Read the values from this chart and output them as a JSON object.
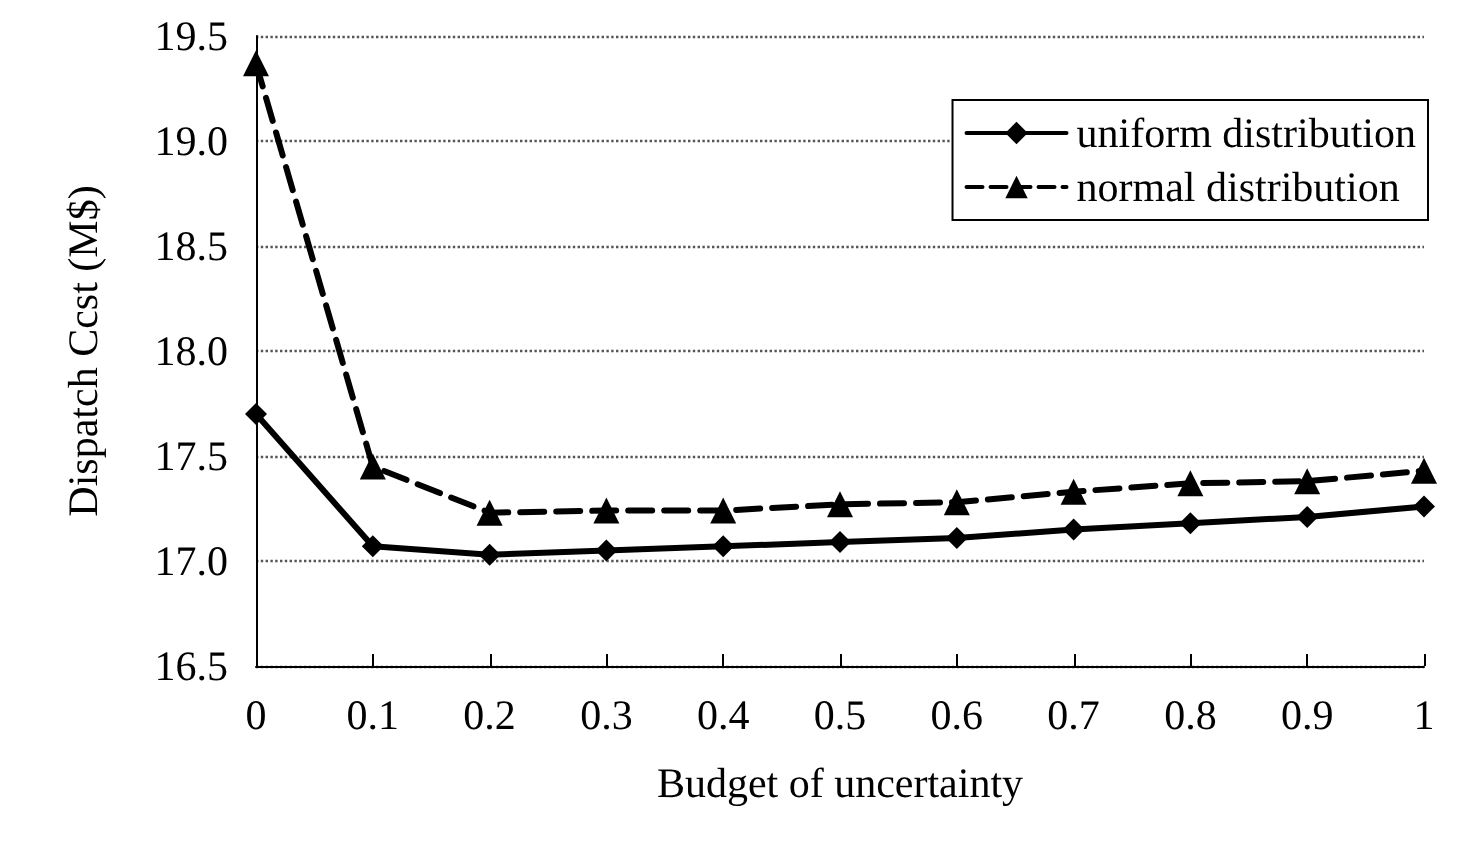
{
  "chart_data": {
    "type": "line",
    "xlabel": "Budget of uncertainty",
    "ylabel": "Dispatch Ccst (M$)",
    "x": [
      0,
      0.1,
      0.2,
      0.3,
      0.4,
      0.5,
      0.6,
      0.7,
      0.8,
      0.9,
      1
    ],
    "series": [
      {
        "name": "uniform distribution",
        "color": "#000000",
        "marker": "diamond",
        "line_style": "solid",
        "values": [
          17.7,
          17.07,
          17.03,
          17.05,
          17.07,
          17.09,
          17.11,
          17.15,
          17.18,
          17.21,
          17.26
        ]
      },
      {
        "name": "normal distribution",
        "color": "#000000",
        "marker": "triangle",
        "line_style": "dashed",
        "values": [
          19.37,
          17.45,
          17.23,
          17.24,
          17.24,
          17.27,
          17.28,
          17.33,
          17.37,
          17.38,
          17.43
        ]
      }
    ],
    "xlim": [
      0,
      1
    ],
    "xticks": [
      0,
      0.1,
      0.2,
      0.3,
      0.4,
      0.5,
      0.6,
      0.7,
      0.8,
      0.9,
      1
    ],
    "ylim": [
      16.5,
      19.5
    ],
    "yticks": [
      {
        "value": 16.5,
        "label": "16.5"
      },
      {
        "value": 17,
        "label": "17.0"
      },
      {
        "value": 17.5,
        "label": "17.5"
      },
      {
        "value": 18,
        "label": "18.0"
      },
      {
        "value": 18.5,
        "label": "18.5"
      },
      {
        "value": 19,
        "label": "19.0"
      },
      {
        "value": 19.5,
        "label": "19.5"
      }
    ],
    "grid": "y",
    "legend": "top right"
  }
}
